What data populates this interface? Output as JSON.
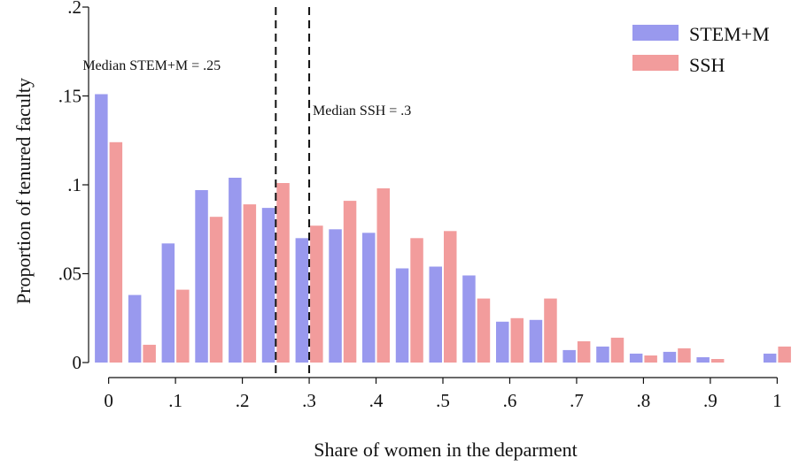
{
  "chart_data": {
    "type": "bar",
    "xlabel": "Share of women in the deparment",
    "ylabel": "Proportion of tenured faculty",
    "x_tick_labels": [
      "0",
      ".1",
      ".2",
      ".3",
      ".4",
      ".5",
      ".6",
      ".7",
      ".8",
      ".9",
      "1"
    ],
    "x_tick_values": [
      0,
      0.1,
      0.2,
      0.3,
      0.4,
      0.5,
      0.6,
      0.7,
      0.8,
      0.9,
      1.0
    ],
    "y_tick_labels": [
      "0",
      ".05",
      ".1",
      ".15",
      ".2"
    ],
    "y_tick_values": [
      0,
      0.05,
      0.1,
      0.15,
      0.2
    ],
    "xlim": [
      -0.03,
      1.03
    ],
    "ylim": [
      0,
      0.2
    ],
    "grid": false,
    "legend_position": "top-right",
    "bin_centers": [
      0,
      0.05,
      0.1,
      0.15,
      0.2,
      0.25,
      0.3,
      0.35,
      0.4,
      0.45,
      0.5,
      0.55,
      0.6,
      0.65,
      0.7,
      0.75,
      0.8,
      0.85,
      0.9,
      0.95,
      1.0
    ],
    "series": [
      {
        "name": "STEM+M",
        "color": "#9999ee",
        "values": [
          0.151,
          0.038,
          0.067,
          0.097,
          0.104,
          0.087,
          0.07,
          0.075,
          0.073,
          0.053,
          0.054,
          0.049,
          0.023,
          0.024,
          0.007,
          0.009,
          0.005,
          0.006,
          0.003,
          0.0,
          0.005
        ]
      },
      {
        "name": "SSH",
        "color": "#f29c9c",
        "values": [
          0.124,
          0.01,
          0.041,
          0.082,
          0.089,
          0.101,
          0.077,
          0.091,
          0.098,
          0.07,
          0.074,
          0.036,
          0.025,
          0.036,
          0.012,
          0.014,
          0.004,
          0.008,
          0.002,
          0.0,
          0.009
        ]
      }
    ],
    "reference_lines": [
      {
        "x": 0.25,
        "label": "Median STEM+M = .25"
      },
      {
        "x": 0.3,
        "label": "Median SSH = .3"
      }
    ]
  }
}
